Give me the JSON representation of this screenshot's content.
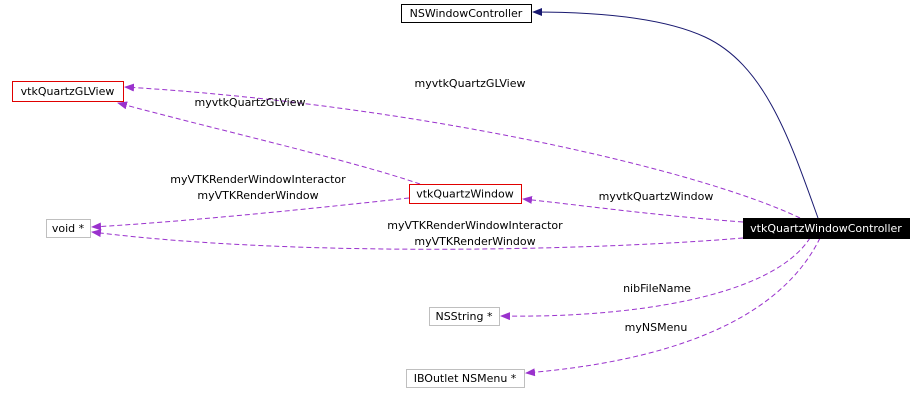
{
  "nodes": [
    {
      "label": "NSWindowController"
    },
    {
      "label": "vtkQuartzGLView"
    },
    {
      "label": "vtkQuartzWindow"
    },
    {
      "label": "void *"
    },
    {
      "label": "vtkQuartzWindowController"
    },
    {
      "label": "NSString *"
    },
    {
      "label": "IBOutlet NSMenu *"
    }
  ],
  "edges": [
    {
      "labels": [
        "myvtkQuartzGLView"
      ]
    },
    {
      "labels": [
        "myvtkQuartzGLView"
      ]
    },
    {
      "labels": [
        "myVTKRenderWindowInteractor",
        "myVTKRenderWindow"
      ]
    },
    {
      "labels": [
        "myvtkQuartzWindow"
      ]
    },
    {
      "labels": [
        "myVTKRenderWindowInteractor",
        "myVTKRenderWindow"
      ]
    },
    {
      "labels": [
        "nibFileName"
      ]
    },
    {
      "labels": [
        "myNSMenu"
      ]
    }
  ]
}
